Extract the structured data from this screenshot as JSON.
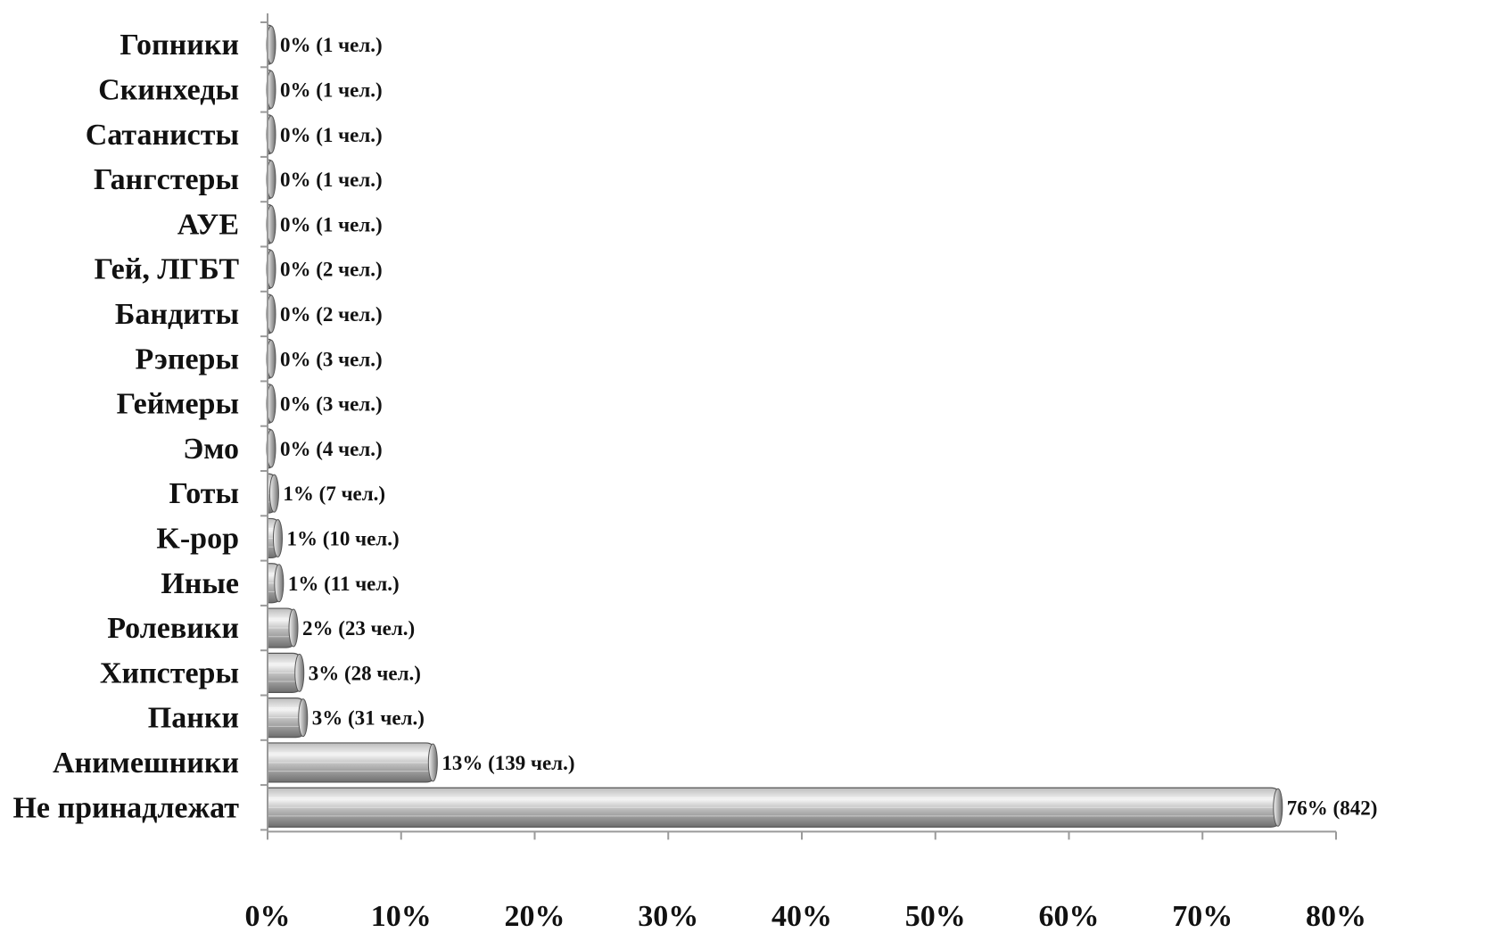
{
  "chart_data": {
    "type": "bar",
    "orientation": "horizontal",
    "categories": [
      "Гопники",
      "Скинхеды",
      "Сатанисты",
      "Гангстеры",
      "АУЕ",
      "Гей, ЛГБТ",
      "Бандиты",
      "Рэперы",
      "Геймеры",
      "Эмо",
      "Готы",
      "K-pop",
      "Иные",
      "Ролевики",
      "Хипстеры",
      "Панки",
      "Анимешники",
      "Не принадлежат"
    ],
    "values": [
      0.09,
      0.09,
      0.09,
      0.09,
      0.09,
      0.18,
      0.18,
      0.27,
      0.27,
      0.36,
      0.63,
      0.9,
      0.99,
      2.07,
      2.52,
      2.79,
      12.51,
      75.78
    ],
    "data_labels": [
      "0% (1 чел.)",
      "0% (1 чел.)",
      "0% (1 чел.)",
      "0% (1 чел.)",
      "0% (1 чел.)",
      "0% (2 чел.)",
      "0% (2 чел.)",
      "0% (3 чел.)",
      "0% (3 чел.)",
      "0% (4 чел.)",
      "1% (7 чел.)",
      "1% (10 чел.)",
      "1% (11 чел.)",
      "2% (23 чел.)",
      "3% (28 чел.)",
      "3% (31 чел.)",
      "13% (139 чел.)",
      "76% (842)"
    ],
    "x_ticks": [
      "0%",
      "10%",
      "20%",
      "30%",
      "40%",
      "50%",
      "60%",
      "70%",
      "80%"
    ],
    "xlim": [
      0,
      80
    ],
    "title": "",
    "xlabel": "",
    "ylabel": "",
    "grid": false,
    "legend": "none",
    "bar_style": "3d-cylinder",
    "colors": {
      "bar_light": "#f4f4f4",
      "bar_mid": "#bcbcbc",
      "bar_dark": "#6e6e6e",
      "bar_outline": "#555555",
      "axis": "#9a9a9a",
      "text": "#111111"
    }
  }
}
